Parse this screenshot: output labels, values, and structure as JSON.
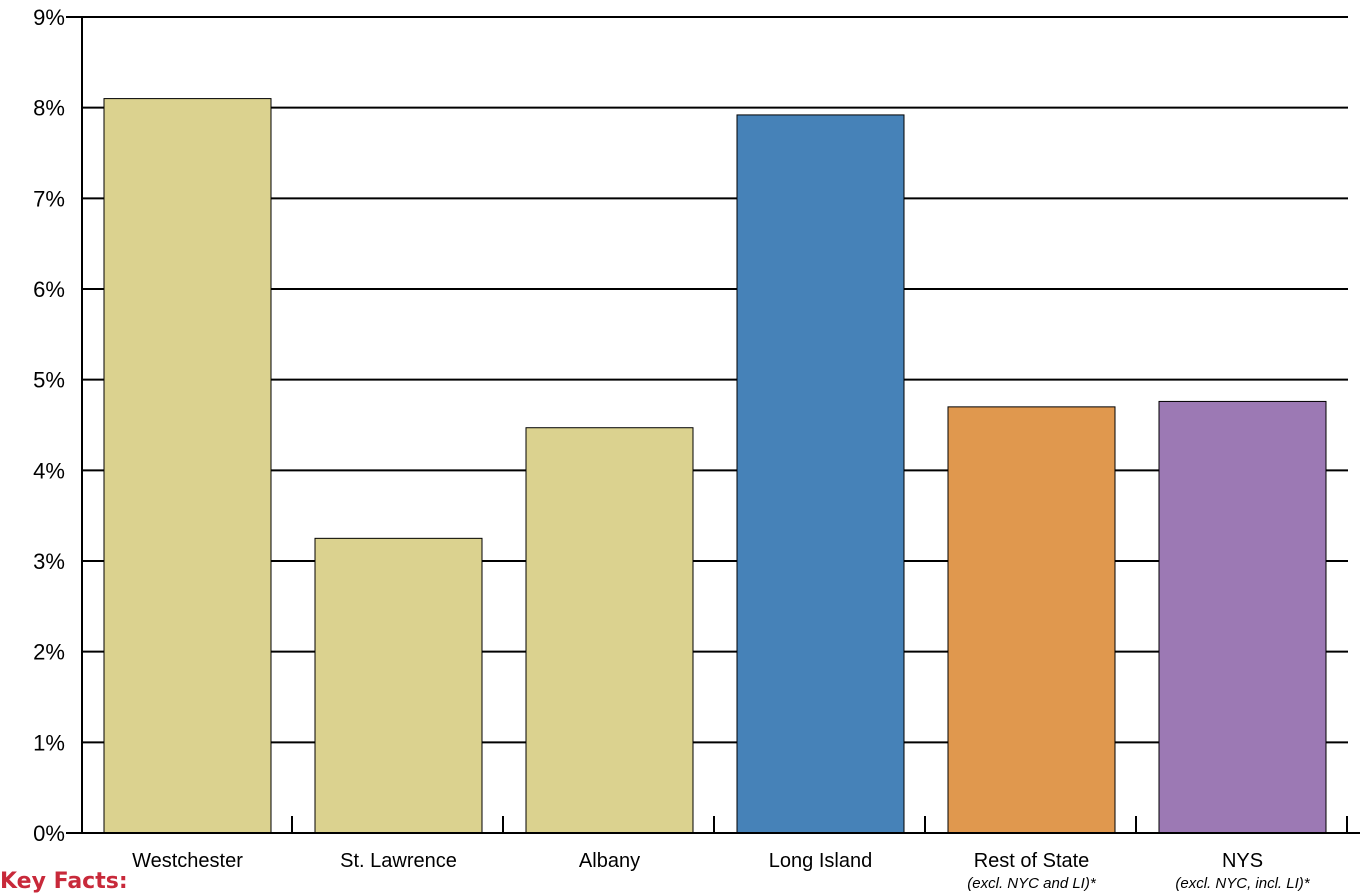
{
  "chart_data": {
    "type": "bar",
    "title": "",
    "xlabel": "",
    "ylabel": "",
    "ylim": [
      0,
      9
    ],
    "y_tick_values": [
      0,
      1,
      2,
      3,
      4,
      5,
      6,
      7,
      8,
      9
    ],
    "y_tick_labels": [
      "0%",
      "1%",
      "2%",
      "3%",
      "4%",
      "5%",
      "6%",
      "7%",
      "8%",
      "9%"
    ],
    "grid": true,
    "categories": [
      "Westchester",
      "St. Lawrence",
      "Albany",
      "Long Island",
      "Rest of State",
      "NYS"
    ],
    "category_sublabels": [
      "",
      "",
      "",
      "",
      "(excl. NYC and LI)*",
      "(excl. NYC, incl. LI)*"
    ],
    "values": [
      8.1,
      3.25,
      4.47,
      7.92,
      4.7,
      4.76
    ],
    "colors": [
      "#dbd28f",
      "#dbd28f",
      "#dbd28f",
      "#4682b8",
      "#e0984e",
      "#9c79b4"
    ]
  },
  "footer": {
    "key_facts_label": "Key Facts:",
    "key_facts_color": "#c8293a"
  }
}
